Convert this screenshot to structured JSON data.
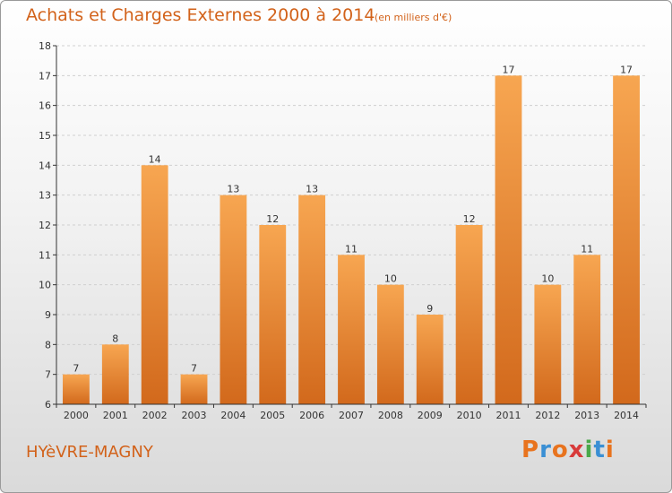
{
  "header": {
    "title": "Achats et Charges Externes 2000 à 2014",
    "subtitle": "(en milliers d'€)"
  },
  "footer": {
    "place": "HYèVRE-MAGNY",
    "logo_text": "Proxiti",
    "logo_colors": [
      "#e8731e",
      "#3a8fd4",
      "#e8731e",
      "#d83a3a",
      "#4aa84a",
      "#3a8fd4",
      "#e8731e"
    ]
  },
  "colors": {
    "text_accent": "#d2621a",
    "bar_top": "#f7a651",
    "bar_bottom": "#d2691c",
    "axis": "#333333",
    "grid": "#cfcfcf"
  },
  "chart_data": {
    "type": "bar",
    "title": "Achats et Charges Externes 2000 à 2014",
    "subtitle": "(en milliers d'€)",
    "xlabel": "",
    "ylabel": "",
    "categories": [
      "2000",
      "2001",
      "2002",
      "2003",
      "2004",
      "2005",
      "2006",
      "2007",
      "2008",
      "2009",
      "2010",
      "2011",
      "2012",
      "2013",
      "2014"
    ],
    "values": [
      7,
      8,
      14,
      7,
      13,
      12,
      13,
      11,
      10,
      9,
      12,
      17,
      10,
      11,
      17
    ],
    "ylim": [
      6,
      18
    ],
    "yticks": [
      6,
      7,
      8,
      9,
      10,
      11,
      12,
      13,
      14,
      15,
      16,
      17,
      18
    ],
    "grid": true,
    "data_labels": true
  }
}
